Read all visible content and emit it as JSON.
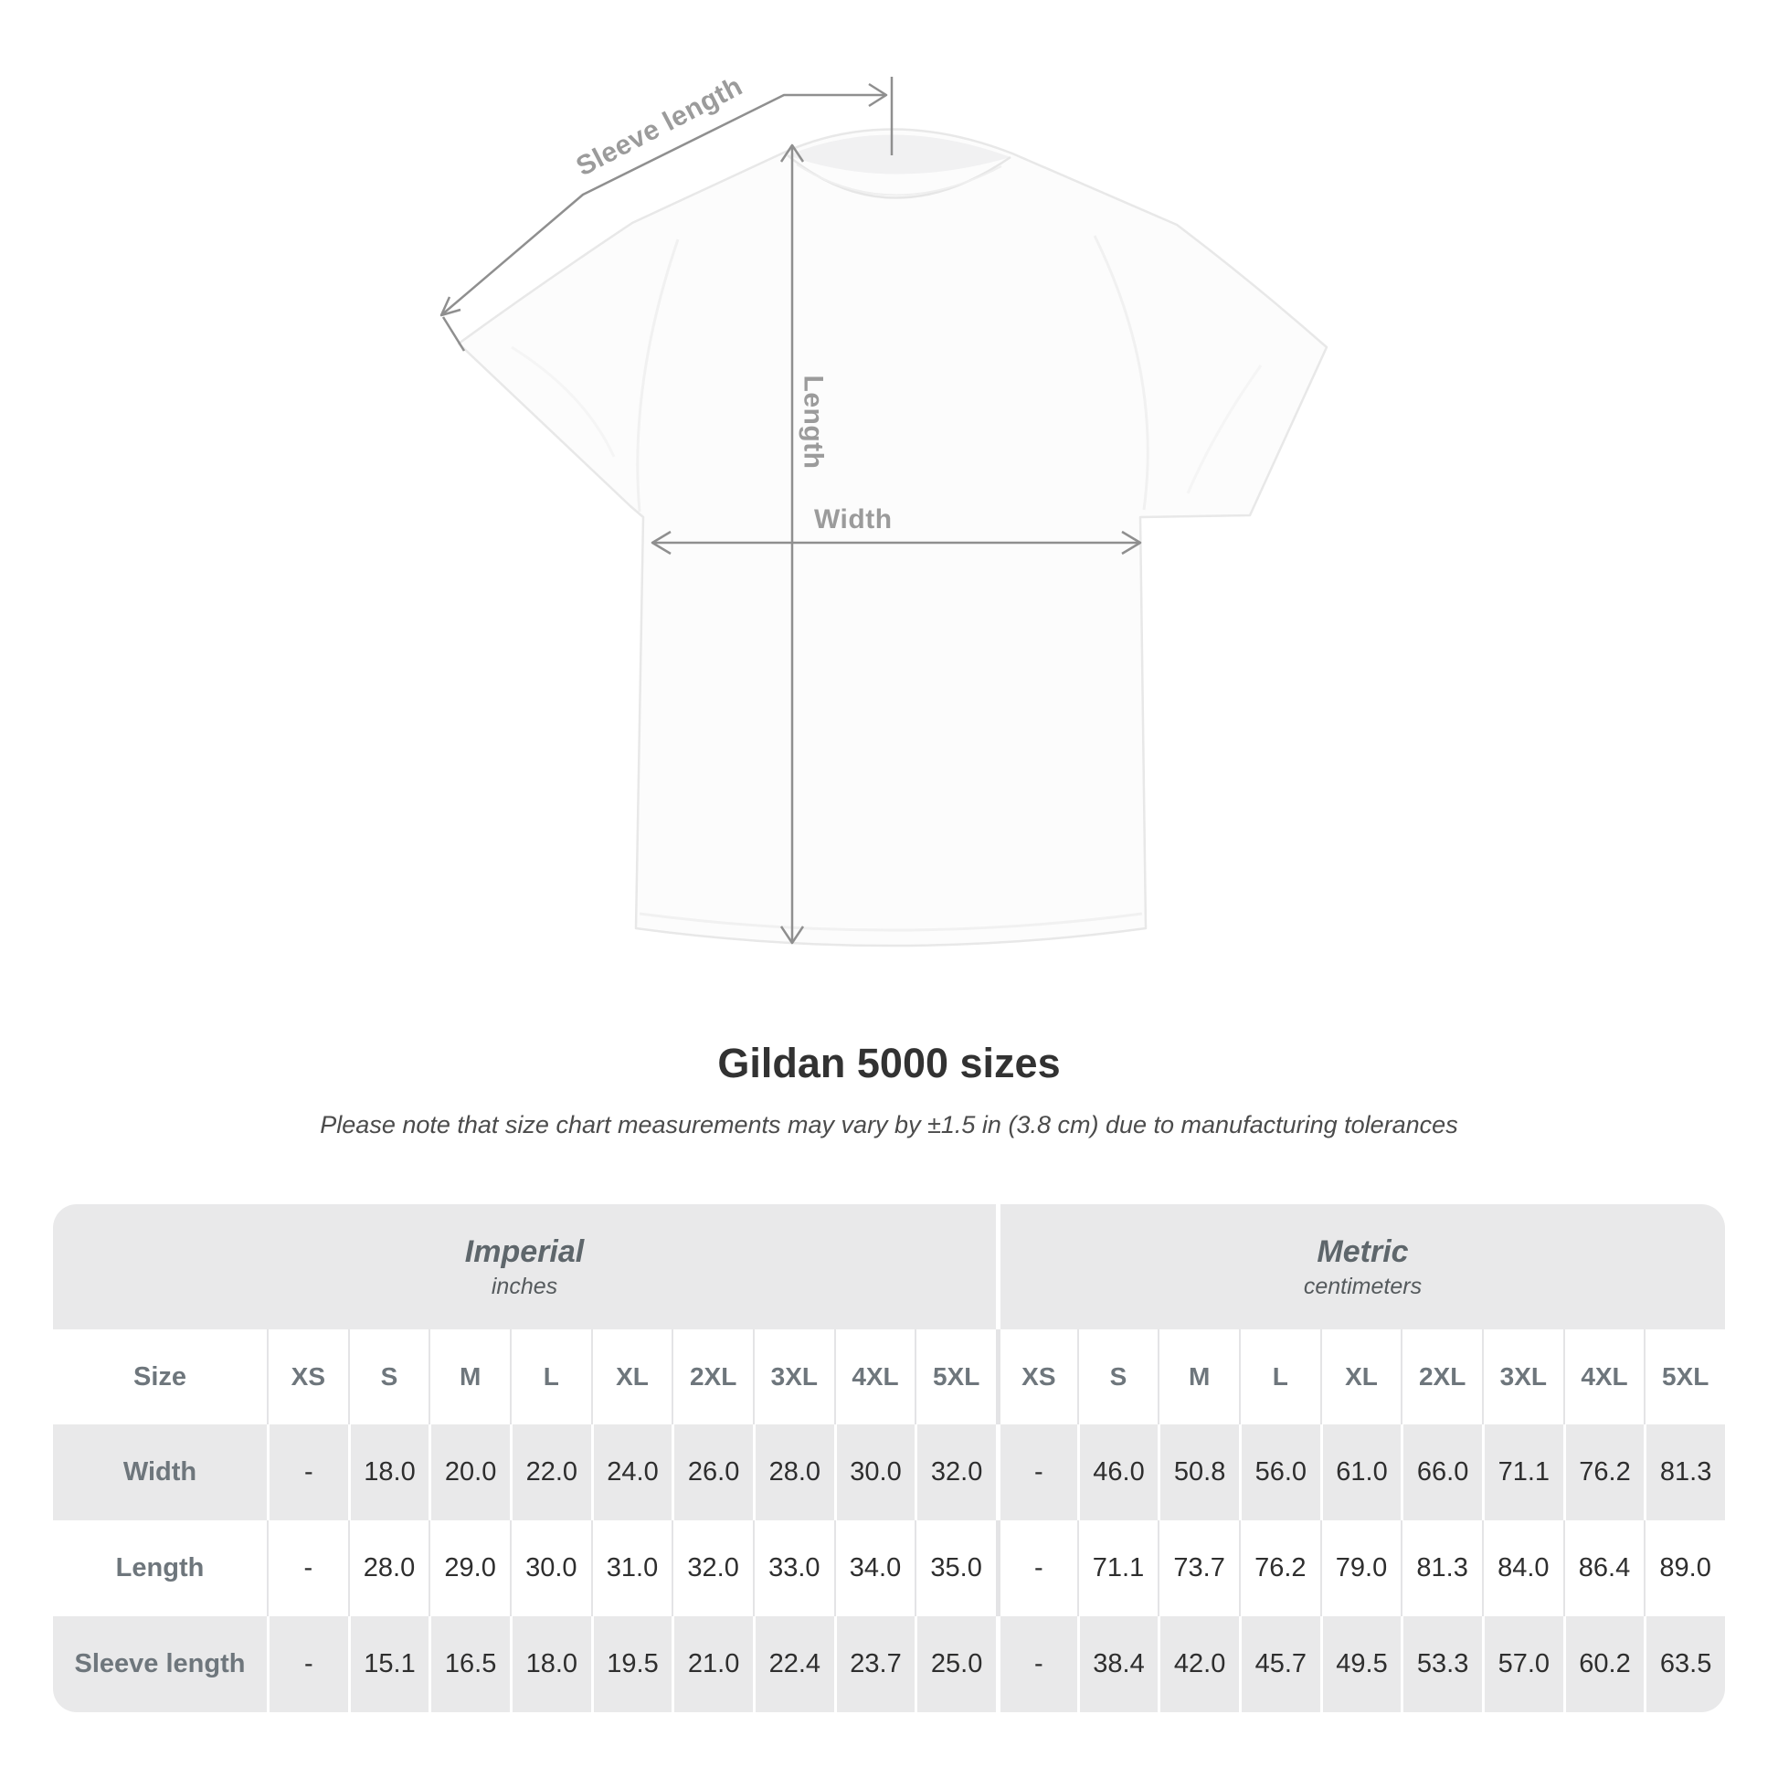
{
  "diagram": {
    "sleeve_length_label": "Sleeve length",
    "length_label": "Length",
    "width_label": "Width"
  },
  "title": "Gildan 5000 sizes",
  "subtitle": "Please note that size chart measurements may vary by ±1.5 in (3.8 cm) due to manufacturing tolerances",
  "table": {
    "groups": [
      {
        "label": "Imperial",
        "unit": "inches"
      },
      {
        "label": "Metric",
        "unit": "centimeters"
      }
    ],
    "size_col_header": "Size",
    "sizes": [
      "XS",
      "S",
      "M",
      "L",
      "XL",
      "2XL",
      "3XL",
      "4XL",
      "5XL"
    ],
    "rows": [
      {
        "label": "Width",
        "imperial": [
          "-",
          "18.0",
          "20.0",
          "22.0",
          "24.0",
          "26.0",
          "28.0",
          "30.0",
          "32.0"
        ],
        "metric": [
          "-",
          "46.0",
          "50.8",
          "56.0",
          "61.0",
          "66.0",
          "71.1",
          "76.2",
          "81.3"
        ]
      },
      {
        "label": "Length",
        "imperial": [
          "-",
          "28.0",
          "29.0",
          "30.0",
          "31.0",
          "32.0",
          "33.0",
          "34.0",
          "35.0"
        ],
        "metric": [
          "-",
          "71.1",
          "73.7",
          "76.2",
          "79.0",
          "81.3",
          "84.0",
          "86.4",
          "89.0"
        ]
      },
      {
        "label": "Sleeve length",
        "imperial": [
          "-",
          "15.1",
          "16.5",
          "18.0",
          "19.5",
          "21.0",
          "22.4",
          "23.7",
          "25.0"
        ],
        "metric": [
          "-",
          "38.4",
          "42.0",
          "45.7",
          "49.5",
          "53.3",
          "57.0",
          "60.2",
          "63.5"
        ]
      }
    ]
  },
  "chart_data": {
    "type": "table",
    "title": "Gildan 5000 sizes",
    "note": "Measurements may vary by ±1.5 in (3.8 cm) due to manufacturing tolerances",
    "column_groups": [
      "Imperial (inches)",
      "Metric (centimeters)"
    ],
    "columns": [
      "XS",
      "S",
      "M",
      "L",
      "XL",
      "2XL",
      "3XL",
      "4XL",
      "5XL"
    ],
    "rows": [
      {
        "measure": "Width",
        "imperial_in": [
          null,
          18.0,
          20.0,
          22.0,
          24.0,
          26.0,
          28.0,
          30.0,
          32.0
        ],
        "metric_cm": [
          null,
          46.0,
          50.8,
          56.0,
          61.0,
          66.0,
          71.1,
          76.2,
          81.3
        ]
      },
      {
        "measure": "Length",
        "imperial_in": [
          null,
          28.0,
          29.0,
          30.0,
          31.0,
          32.0,
          33.0,
          34.0,
          35.0
        ],
        "metric_cm": [
          null,
          71.1,
          73.7,
          76.2,
          79.0,
          81.3,
          84.0,
          86.4,
          89.0
        ]
      },
      {
        "measure": "Sleeve length",
        "imperial_in": [
          null,
          15.1,
          16.5,
          18.0,
          19.5,
          21.0,
          22.4,
          23.7,
          25.0
        ],
        "metric_cm": [
          null,
          38.4,
          42.0,
          45.7,
          49.5,
          53.3,
          57.0,
          60.2,
          63.5
        ]
      }
    ]
  },
  "colors": {
    "measure_line": "#8f8f8f",
    "diagram_label": "#9b9b9b",
    "table_band_bg": "#e9e9ea",
    "header_text": "#6e767c",
    "value_text": "#2e2e2e",
    "title_text": "#323232"
  }
}
